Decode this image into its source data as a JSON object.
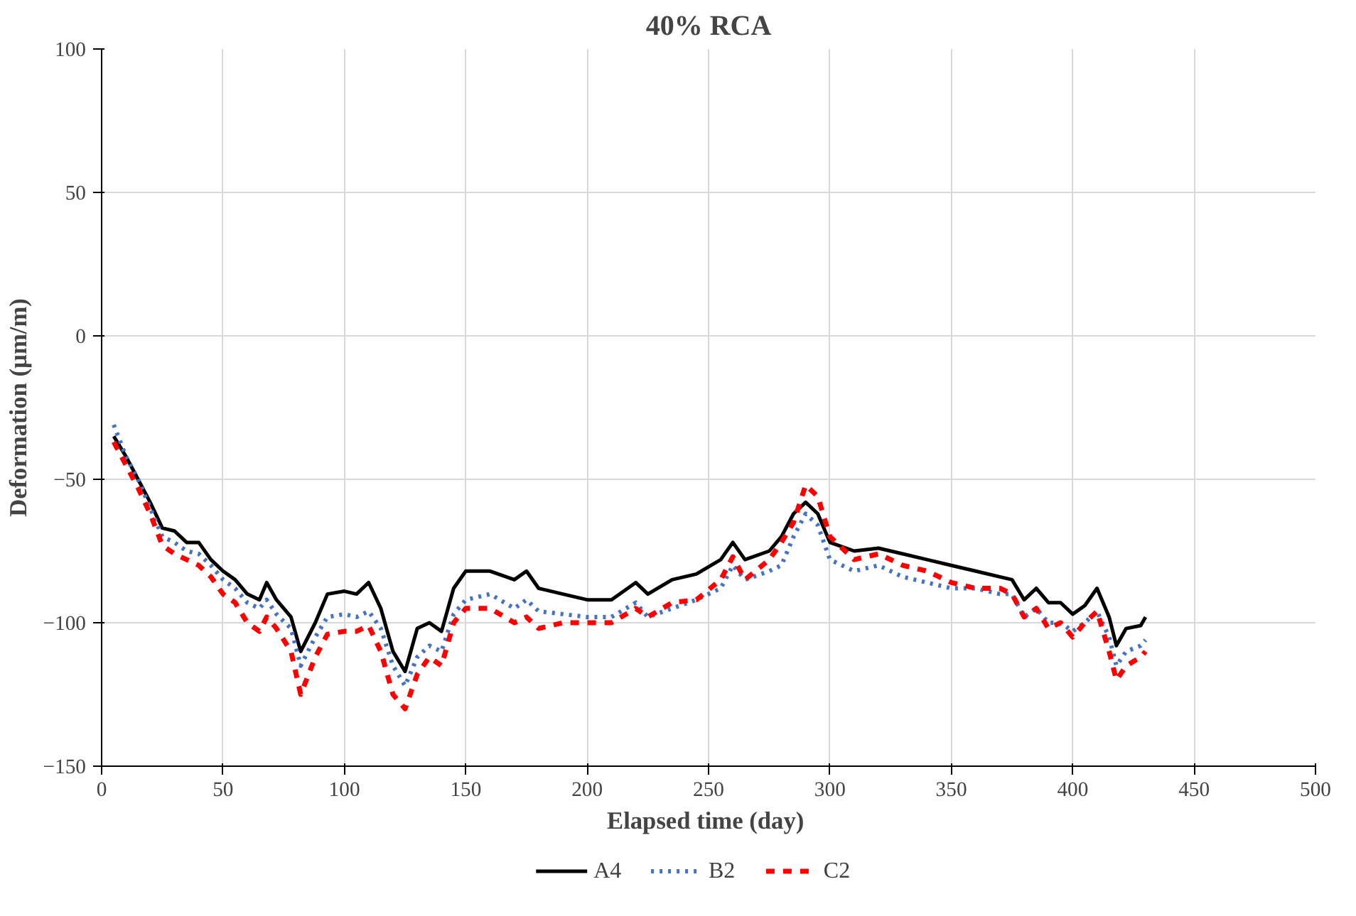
{
  "chart_data": {
    "type": "line",
    "title": "40% RCA",
    "xlabel": "Elapsed  time (day)",
    "ylabel": "Deformation (µm/m)",
    "xlim": [
      0,
      500
    ],
    "xticks": [
      0,
      50,
      100,
      150,
      200,
      250,
      300,
      350,
      400,
      450,
      500
    ],
    "ylim": [
      -150,
      100
    ],
    "yticks": [
      -150,
      -100,
      -50,
      0,
      50,
      100
    ],
    "grid": true,
    "legend": "bottom",
    "marker": "none",
    "series": [
      {
        "name": "A4",
        "color": "#000000",
        "line_style": "solid",
        "x": [
          5,
          10,
          15,
          20,
          25,
          30,
          35,
          40,
          45,
          50,
          55,
          60,
          65,
          68,
          72,
          78,
          82,
          88,
          93,
          100,
          105,
          110,
          115,
          120,
          125,
          130,
          135,
          140,
          145,
          150,
          160,
          170,
          175,
          180,
          190,
          200,
          210,
          220,
          225,
          235,
          245,
          255,
          260,
          265,
          275,
          280,
          285,
          290,
          295,
          300,
          310,
          320,
          330,
          340,
          350,
          360,
          370,
          375,
          380,
          385,
          390,
          395,
          400,
          405,
          410,
          415,
          418,
          422,
          428,
          430
        ],
        "values": [
          -35,
          -42,
          -50,
          -58,
          -67,
          -68,
          -72,
          -72,
          -78,
          -82,
          -85,
          -90,
          -92,
          -86,
          -92,
          -98,
          -110,
          -100,
          -90,
          -89,
          -90,
          -86,
          -95,
          -110,
          -117,
          -102,
          -100,
          -103,
          -88,
          -82,
          -82,
          -85,
          -82,
          -88,
          -90,
          -92,
          -92,
          -86,
          -90,
          -85,
          -83,
          -78,
          -72,
          -78,
          -75,
          -70,
          -62,
          -58,
          -62,
          -72,
          -75,
          -74,
          -76,
          -78,
          -80,
          -82,
          -84,
          -85,
          -92,
          -88,
          -93,
          -93,
          -97,
          -94,
          -88,
          -98,
          -108,
          -102,
          -101,
          -98
        ]
      },
      {
        "name": "B2",
        "color": "#4472c4",
        "line_style": "dotted",
        "x": [
          5,
          10,
          15,
          20,
          25,
          30,
          35,
          40,
          45,
          50,
          55,
          60,
          65,
          68,
          72,
          78,
          82,
          88,
          93,
          100,
          105,
          110,
          115,
          120,
          125,
          130,
          135,
          140,
          145,
          150,
          160,
          170,
          175,
          180,
          190,
          200,
          210,
          220,
          225,
          235,
          245,
          255,
          260,
          265,
          275,
          280,
          285,
          290,
          295,
          300,
          310,
          320,
          330,
          340,
          350,
          360,
          370,
          375,
          380,
          385,
          390,
          395,
          400,
          405,
          410,
          415,
          418,
          422,
          428,
          430
        ],
        "values": [
          -31,
          -42,
          -50,
          -60,
          -70,
          -72,
          -75,
          -76,
          -80,
          -85,
          -88,
          -93,
          -95,
          -92,
          -97,
          -102,
          -115,
          -105,
          -98,
          -97,
          -98,
          -96,
          -102,
          -115,
          -122,
          -112,
          -108,
          -110,
          -97,
          -92,
          -90,
          -95,
          -92,
          -96,
          -97,
          -98,
          -98,
          -93,
          -98,
          -95,
          -92,
          -88,
          -80,
          -85,
          -82,
          -80,
          -70,
          -62,
          -66,
          -78,
          -82,
          -80,
          -84,
          -86,
          -88,
          -88,
          -90,
          -90,
          -98,
          -95,
          -100,
          -100,
          -103,
          -100,
          -96,
          -105,
          -115,
          -110,
          -108,
          -106
        ]
      },
      {
        "name": "C2",
        "color": "#ff0000",
        "line_style": "dashed",
        "x": [
          5,
          10,
          15,
          20,
          25,
          30,
          35,
          40,
          45,
          50,
          55,
          60,
          65,
          68,
          72,
          78,
          82,
          88,
          93,
          100,
          105,
          110,
          115,
          120,
          125,
          130,
          135,
          140,
          145,
          150,
          160,
          170,
          175,
          180,
          190,
          200,
          210,
          220,
          225,
          235,
          245,
          255,
          260,
          265,
          275,
          280,
          285,
          290,
          295,
          300,
          310,
          320,
          330,
          340,
          350,
          360,
          370,
          375,
          380,
          385,
          390,
          395,
          400,
          405,
          410,
          415,
          418,
          422,
          428,
          430
        ],
        "values": [
          -37,
          -45,
          -53,
          -62,
          -73,
          -76,
          -78,
          -80,
          -84,
          -90,
          -93,
          -100,
          -103,
          -98,
          -102,
          -110,
          -125,
          -112,
          -104,
          -103,
          -103,
          -101,
          -110,
          -125,
          -130,
          -118,
          -112,
          -115,
          -100,
          -95,
          -95,
          -100,
          -98,
          -102,
          -100,
          -100,
          -100,
          -95,
          -98,
          -93,
          -92,
          -85,
          -77,
          -85,
          -78,
          -72,
          -65,
          -52,
          -56,
          -70,
          -78,
          -76,
          -80,
          -82,
          -86,
          -88,
          -88,
          -90,
          -98,
          -95,
          -102,
          -100,
          -105,
          -100,
          -96,
          -110,
          -120,
          -115,
          -112,
          -110
        ]
      }
    ]
  }
}
